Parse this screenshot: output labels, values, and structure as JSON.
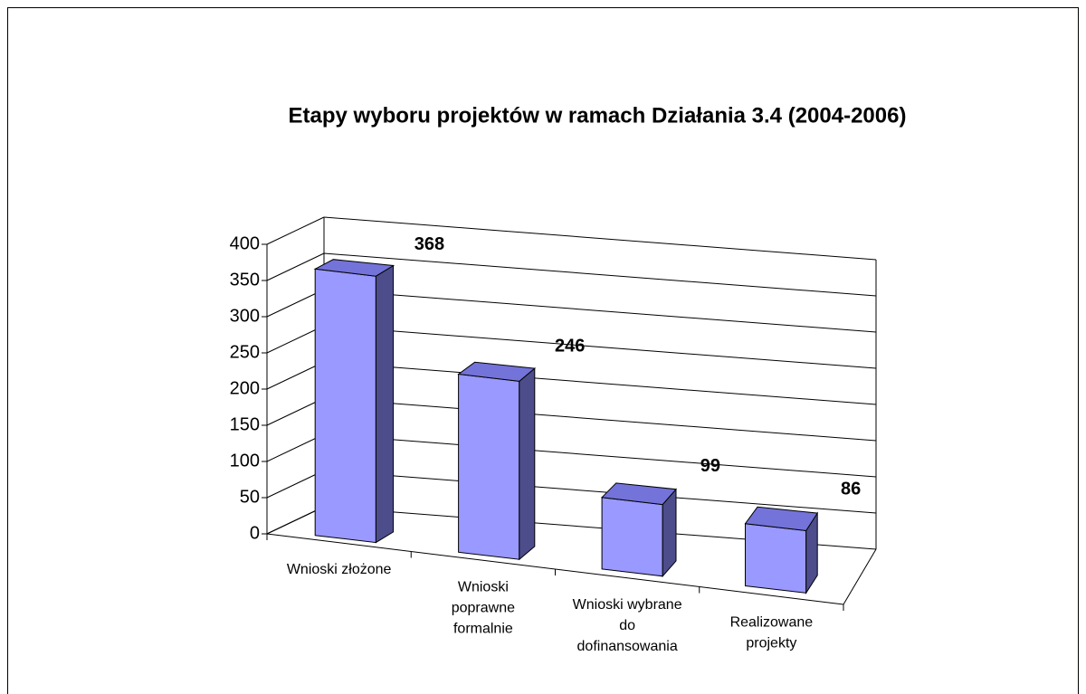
{
  "chart_data": {
    "type": "bar3d",
    "title": "Etapy wyboru projektów  w ramach Działania 3.4    (2004-2006)",
    "categories": [
      "Wnioski złożone",
      "Wnioski poprawne formalnie",
      "Wnioski wybrane do dofinansowania",
      "Realizowane projekty"
    ],
    "values": [
      368,
      246,
      99,
      86
    ],
    "color": "#9999ff",
    "ylim": [
      0,
      400
    ],
    "yticks": [
      0,
      50,
      100,
      150,
      200,
      250,
      300,
      350,
      400
    ],
    "grid": true
  }
}
